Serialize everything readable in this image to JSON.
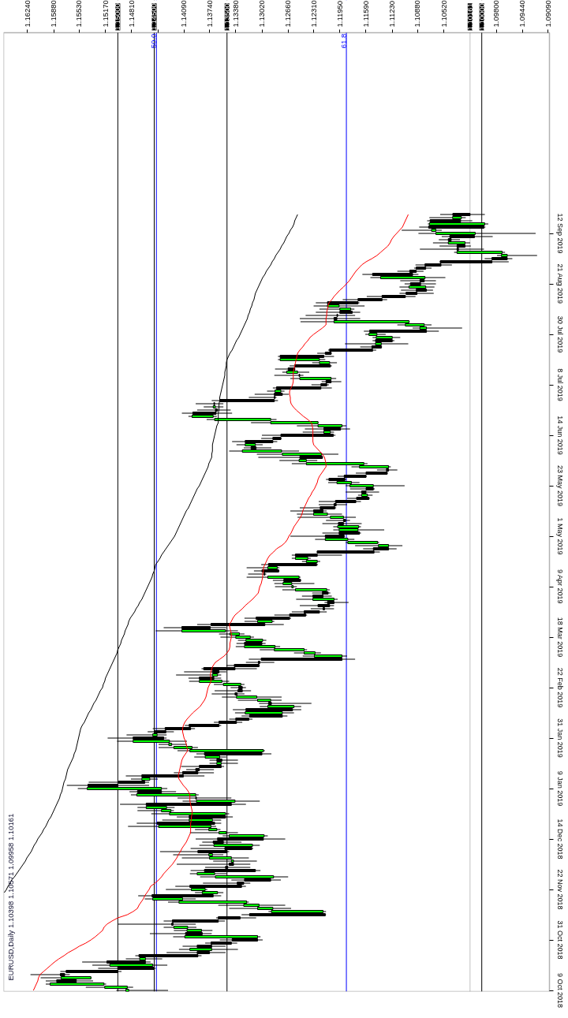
{
  "chart_data": {
    "type": "candlestick",
    "title": "EURUSD,Daily 1.10398 1.10571 1.09958 1.10161",
    "orientation": "horizontal",
    "categories": [
      null,
      null,
      null,
      null,
      null,
      null,
      "12 Sep 2019",
      null,
      null,
      null,
      null,
      null,
      null,
      null,
      null,
      null,
      null,
      null,
      null,
      null,
      null,
      null,
      "21 Aug 2019",
      null,
      null,
      null,
      null,
      null,
      null,
      null,
      null,
      null,
      null,
      null,
      null,
      null,
      null,
      null,
      "30 Jul 2019",
      null,
      null,
      null,
      null,
      null,
      null,
      null,
      null,
      null,
      null,
      null,
      null,
      null,
      null,
      null,
      "8 Jul 2019",
      null,
      null,
      null,
      null,
      null,
      null,
      null,
      null,
      null,
      null,
      null,
      null,
      null,
      null,
      null,
      "14 Jun 2019",
      null,
      null,
      null,
      null,
      null,
      null,
      null,
      null,
      null,
      null,
      null,
      null,
      null,
      null,
      null,
      "23 May 2019",
      null,
      null,
      null,
      null,
      null,
      null,
      null,
      null,
      null,
      null,
      null,
      null,
      null,
      null,
      null,
      "1 May 2019",
      null,
      null,
      null,
      null,
      null,
      null,
      null,
      null,
      null,
      null,
      null,
      null,
      null,
      null,
      null,
      "9 Apr 2019",
      null,
      null,
      null,
      null,
      null,
      null,
      null,
      null,
      null,
      null,
      null,
      null,
      null,
      null,
      null,
      "18 Mar 2019",
      null,
      null,
      null,
      null,
      null,
      null,
      null,
      null,
      null,
      null,
      null,
      null,
      null,
      null,
      null,
      "22 Feb 2019",
      null,
      null,
      null,
      null,
      null,
      null,
      null,
      null,
      null,
      null,
      null,
      null,
      null,
      null,
      null,
      "31 Jan 2019",
      null,
      null,
      null,
      null,
      null,
      null,
      null,
      null,
      null,
      null,
      null,
      null,
      null,
      null,
      null,
      "9 Jan 2019",
      null,
      null,
      null,
      null,
      null,
      null,
      null,
      null,
      null,
      null,
      null,
      null,
      null,
      null,
      null,
      "14 Dec 2018",
      null,
      null,
      null,
      null,
      null,
      null,
      null,
      null,
      null,
      null,
      null,
      null,
      null,
      null,
      null,
      "22 Nov 2018",
      null,
      null,
      null,
      null,
      null,
      null,
      null,
      null,
      null,
      null,
      null,
      null,
      null,
      null,
      null,
      "31 Oct 2018",
      null,
      null,
      null,
      null,
      null,
      null,
      null,
      null,
      null,
      null,
      null,
      null,
      null,
      null,
      null,
      "9 Oct 2018"
    ],
    "ohlc": [
      [
        1.10398,
        1.10571,
        1.09958,
        1.10161
      ],
      [
        1.1028,
        1.1072,
        1.1022,
        1.104
      ],
      [
        1.1071,
        1.1075,
        1.1013,
        1.1029
      ],
      [
        1.0996,
        1.1074,
        1.0991,
        1.1072
      ],
      [
        1.1073,
        1.1086,
        1.0995,
        1.0997
      ],
      [
        1.1063,
        1.111,
        1.1055,
        1.1069
      ],
      [
        1.1009,
        1.1087,
        1.0926,
        1.1063
      ],
      [
        1.1044,
        1.1055,
        1.0985,
        1.101
      ],
      [
        1.1046,
        1.1059,
        1.103,
        1.1042
      ],
      [
        1.1023,
        1.1067,
        1.1016,
        1.1046
      ],
      [
        1.1034,
        1.1058,
        1.1015,
        1.1023
      ],
      [
        1.1034,
        1.1085,
        1.0997,
        1.1032
      ],
      [
        1.0972,
        1.1038,
        1.0968,
        1.1034
      ],
      [
        1.0965,
        1.0979,
        1.0924,
        1.0973
      ],
      [
        1.0986,
        1.0996,
        1.0958,
        1.0965
      ],
      [
        1.1057,
        1.1058,
        1.0963,
        1.0986
      ],
      [
        1.1078,
        1.1091,
        1.1041,
        1.1056
      ],
      [
        1.109,
        1.1093,
        1.1069,
        1.1077
      ],
      [
        1.1099,
        1.1116,
        1.108,
        1.109
      ],
      [
        1.115,
        1.1164,
        1.1087,
        1.1095
      ],
      [
        1.1078,
        1.1153,
        1.105,
        1.1139
      ],
      [
        1.1085,
        1.1112,
        1.1063,
        1.1079
      ],
      [
        1.1098,
        1.1106,
        1.1063,
        1.1084
      ],
      [
        1.1077,
        1.1113,
        1.1065,
        1.11
      ],
      [
        1.109,
        1.1111,
        1.1067,
        1.1076
      ],
      [
        1.1104,
        1.1113,
        1.1066,
        1.1089
      ],
      [
        1.1137,
        1.1158,
        1.1091,
        1.1105
      ],
      [
        1.117,
        1.1191,
        1.113,
        1.1137
      ],
      [
        1.1212,
        1.1228,
        1.1168,
        1.117
      ],
      [
        1.1196,
        1.1231,
        1.1161,
        1.1212
      ],
      [
        1.118,
        1.1223,
        1.1175,
        1.1195
      ],
      [
        1.1195,
        1.1228,
        1.1167,
        1.1178
      ],
      [
        1.1199,
        1.1242,
        1.1174,
        1.1198
      ],
      [
        1.1203,
        1.125,
        1.1167,
        1.1199
      ],
      [
        1.11,
        1.1249,
        1.1099,
        1.1203
      ],
      [
        1.1079,
        1.1116,
        1.1069,
        1.1105
      ],
      [
        1.1076,
        1.1095,
        1.1027,
        1.1085
      ],
      [
        1.1154,
        1.1162,
        1.1059,
        1.1076
      ],
      [
        1.1144,
        1.116,
        1.1132,
        1.1155
      ],
      [
        1.1123,
        1.115,
        1.1112,
        1.1145
      ],
      [
        1.1146,
        1.115,
        1.112,
        1.1123
      ],
      [
        1.1138,
        1.1188,
        1.1101,
        1.1146
      ],
      [
        1.1151,
        1.1167,
        1.1137,
        1.1138
      ],
      [
        1.1209,
        1.1211,
        1.1145,
        1.115
      ],
      [
        1.1215,
        1.1226,
        1.1206,
        1.1207
      ],
      [
        1.1277,
        1.128,
        1.1203,
        1.1217
      ],
      [
        1.1223,
        1.128,
        1.1215,
        1.1277
      ],
      [
        1.1209,
        1.1233,
        1.1199,
        1.1223
      ],
      [
        1.1257,
        1.1264,
        1.1206,
        1.1208
      ],
      [
        1.1266,
        1.1284,
        1.1256,
        1.1257
      ],
      [
        1.1253,
        1.1274,
        1.1237,
        1.1268
      ],
      [
        1.1251,
        1.1285,
        1.1245,
        1.125
      ],
      [
        1.1207,
        1.1263,
        1.12,
        1.125
      ],
      [
        1.1214,
        1.122,
        1.1193,
        1.1207
      ],
      [
        1.1221,
        1.1234,
        1.121,
        1.1213
      ],
      [
        1.1282,
        1.1287,
        1.1206,
        1.1221
      ],
      [
        1.1276,
        1.1295,
        1.1271,
        1.1284
      ],
      [
        1.1285,
        1.1312,
        1.1265,
        1.1274
      ],
      [
        1.1285,
        1.132,
        1.1282,
        1.1284
      ],
      [
        1.136,
        1.1371,
        1.128,
        1.1285
      ],
      [
        1.1368,
        1.1393,
        1.1355,
        1.1367
      ],
      [
        1.1366,
        1.1382,
        1.1355,
        1.1369
      ],
      [
        1.1366,
        1.1391,
        1.1345,
        1.1363
      ],
      [
        1.1397,
        1.1412,
        1.1343,
        1.1365
      ],
      [
        1.1369,
        1.1403,
        1.1364,
        1.1398
      ],
      [
        1.129,
        1.1378,
        1.1282,
        1.1367
      ],
      [
        1.1225,
        1.1317,
        1.1224,
        1.129
      ],
      [
        1.1192,
        1.1254,
        1.1186,
        1.1225
      ],
      [
        1.1217,
        1.1243,
        1.1181,
        1.1194
      ],
      [
        1.1208,
        1.1246,
        1.1203,
        1.1217
      ],
      [
        1.1276,
        1.1302,
        1.1201,
        1.1204
      ],
      [
        1.1287,
        1.1303,
        1.1275,
        1.1276
      ],
      [
        1.1325,
        1.1343,
        1.1281,
        1.1287
      ],
      [
        1.1311,
        1.1337,
        1.1301,
        1.1325
      ],
      [
        1.1317,
        1.1327,
        1.1289,
        1.131
      ],
      [
        1.1275,
        1.1347,
        1.1251,
        1.1329
      ],
      [
        1.122,
        1.1309,
        1.1197,
        1.1274
      ],
      [
        1.125,
        1.1307,
        1.1218,
        1.1219
      ],
      [
        1.1241,
        1.1278,
        1.1226,
        1.1251
      ],
      [
        1.1162,
        1.1261,
        1.1157,
        1.1241
      ],
      [
        1.1128,
        1.1179,
        1.1125,
        1.1168
      ],
      [
        1.1131,
        1.1144,
        1.1116,
        1.1128
      ],
      [
        1.1159,
        1.1173,
        1.1129,
        1.113
      ],
      [
        1.1189,
        1.1198,
        1.1158,
        1.1159
      ],
      [
        1.121,
        1.1214,
        1.1186,
        1.1188
      ],
      [
        1.1179,
        1.1211,
        1.1168,
        1.1199
      ],
      [
        1.1149,
        1.1187,
        1.1106,
        1.1181
      ],
      [
        1.1159,
        1.1181,
        1.1147,
        1.1149
      ],
      [
        1.1165,
        1.1187,
        1.1141,
        1.1159
      ],
      [
        1.1157,
        1.117,
        1.115,
        1.1165
      ],
      [
        1.1172,
        1.1185,
        1.1154,
        1.1155
      ],
      [
        1.1201,
        1.1224,
        1.1166,
        1.1173
      ],
      [
        1.1203,
        1.1224,
        1.1185,
        1.12
      ],
      [
        1.1222,
        1.125,
        1.12,
        1.1202
      ],
      [
        1.1231,
        1.1263,
        1.1213,
        1.1218
      ],
      [
        1.1212,
        1.1254,
        1.1192,
        1.1231
      ],
      [
        1.119,
        1.1253,
        1.1173,
        1.1208
      ],
      [
        1.119,
        1.1214,
        1.1181,
        1.1187
      ],
      [
        1.1197,
        1.1219,
        1.1165,
        1.119
      ],
      [
        1.1169,
        1.1204,
        1.1166,
        1.1198
      ],
      [
        1.117,
        1.1204,
        1.1134,
        1.1196
      ],
      [
        1.1196,
        1.1219,
        1.1166,
        1.1168
      ],
      [
        1.1215,
        1.1263,
        1.1188,
        1.1189
      ],
      [
        1.1184,
        1.1229,
        1.1175,
        1.1215
      ],
      [
        1.1143,
        1.1187,
        1.1141,
        1.1184
      ],
      [
        1.1128,
        1.1174,
        1.1109,
        1.1142
      ],
      [
        1.1149,
        1.1163,
        1.1117,
        1.1128
      ],
      [
        1.1226,
        1.1227,
        1.114,
        1.1148
      ],
      [
        1.1256,
        1.1261,
        1.1192,
        1.1226
      ],
      [
        1.1239,
        1.1261,
        1.1235,
        1.1256
      ],
      [
        1.1226,
        1.1247,
        1.1222,
        1.1241
      ],
      [
        1.1293,
        1.1303,
        1.1225,
        1.1227
      ],
      [
        1.1281,
        1.1323,
        1.1278,
        1.1294
      ],
      [
        1.1302,
        1.1313,
        1.1278,
        1.1279
      ],
      [
        1.1299,
        1.1321,
        1.1296,
        1.1298
      ],
      [
        1.1251,
        1.1323,
        1.1249,
        1.1294
      ],
      [
        1.1272,
        1.1287,
        1.1248,
        1.1249
      ],
      [
        1.1261,
        1.1285,
        1.123,
        1.1273
      ],
      [
        1.1259,
        1.1284,
        1.1254,
        1.1261
      ],
      [
        1.1213,
        1.1274,
        1.1209,
        1.1256
      ],
      [
        1.1219,
        1.1233,
        1.1208,
        1.1211
      ],
      [
        1.1232,
        1.1247,
        1.1206,
        1.1218
      ],
      [
        1.1203,
        1.1255,
        1.1198,
        1.1232
      ],
      [
        1.1212,
        1.1216,
        1.1183,
        1.1203
      ],
      [
        1.1225,
        1.125,
        1.1203,
        1.1209
      ],
      [
        1.1218,
        1.1235,
        1.1203,
        1.1216
      ],
      [
        1.1244,
        1.1261,
        1.1213,
        1.1223
      ],
      [
        1.1264,
        1.1285,
        1.124,
        1.1242
      ],
      [
        1.131,
        1.1326,
        1.1262,
        1.1264
      ],
      [
        1.1288,
        1.1326,
        1.1285,
        1.1308
      ],
      [
        1.1372,
        1.1391,
        1.1272,
        1.1298
      ],
      [
        1.1412,
        1.1437,
        1.1351,
        1.1373
      ],
      [
        1.1352,
        1.1448,
        1.1335,
        1.1412
      ],
      [
        1.1333,
        1.1361,
        1.1326,
        1.1346
      ],
      [
        1.1318,
        1.1359,
        1.1313,
        1.1338
      ],
      [
        1.1301,
        1.1335,
        1.1296,
        1.1324
      ],
      [
        1.1326,
        1.1337,
        1.1297,
        1.1302
      ],
      [
        1.1284,
        1.1338,
        1.1277,
        1.1326
      ],
      [
        1.1244,
        1.1305,
        1.124,
        1.1285
      ],
      [
        1.1229,
        1.1258,
        1.1221,
        1.1244
      ],
      [
        1.1192,
        1.1246,
        1.1185,
        1.123
      ],
      [
        1.1303,
        1.132,
        1.1174,
        1.1192
      ],
      [
        1.1307,
        1.1324,
        1.1285,
        1.1305
      ],
      [
        1.134,
        1.1351,
        1.1305,
        1.1306
      ],
      [
        1.1382,
        1.1385,
        1.1309,
        1.1339
      ],
      [
        1.137,
        1.1409,
        1.1351,
        1.1361
      ],
      [
        1.1363,
        1.142,
        1.1358,
        1.137
      ],
      [
        1.1388,
        1.1403,
        1.1358,
        1.1368
      ],
      [
        1.1357,
        1.1402,
        1.1347,
        1.1388
      ],
      [
        1.1331,
        1.1368,
        1.1326,
        1.1355
      ],
      [
        1.1334,
        1.1345,
        1.1324,
        1.1329
      ],
      [
        1.1335,
        1.1367,
        1.1317,
        1.1329
      ],
      [
        1.1339,
        1.1371,
        1.1326,
        1.1336
      ],
      [
        1.1309,
        1.1357,
        1.1275,
        1.1337
      ],
      [
        1.129,
        1.1335,
        1.1275,
        1.1308
      ],
      [
        1.1293,
        1.1306,
        1.1234,
        1.1289
      ],
      [
        1.1258,
        1.1305,
        1.1248,
        1.1294
      ],
      [
        1.1324,
        1.1342,
        1.1248,
        1.126
      ],
      [
        1.1274,
        1.1339,
        1.1258,
        1.1325
      ],
      [
        1.1319,
        1.133,
        1.1267,
        1.1274
      ],
      [
        1.1338,
        1.1347,
        1.1315,
        1.132
      ],
      [
        1.1361,
        1.1368,
        1.1329,
        1.1337
      ],
      [
        1.1402,
        1.1408,
        1.1358,
        1.1361
      ],
      [
        1.1435,
        1.1452,
        1.1394,
        1.14
      ],
      [
        1.1449,
        1.1459,
        1.1423,
        1.1434
      ],
      [
        1.1446,
        1.1488,
        1.1433,
        1.1452
      ],
      [
        1.1479,
        1.1514,
        1.1433,
        1.1437
      ],
      [
        1.1429,
        1.1501,
        1.1405,
        1.1479
      ],
      [
        1.1426,
        1.1444,
        1.1405,
        1.143
      ],
      [
        1.1398,
        1.1444,
        1.139,
        1.1423
      ],
      [
        1.13,
        1.1418,
        1.1298,
        1.1401
      ],
      [
        1.1381,
        1.1392,
        1.1289,
        1.1302
      ],
      [
        1.136,
        1.1395,
        1.1351,
        1.138
      ],
      [
        1.1364,
        1.1374,
        1.1335,
        1.1357
      ],
      [
        1.1358,
        1.1374,
        1.1335,
        1.1364
      ],
      [
        1.1388,
        1.1413,
        1.1354,
        1.1358
      ],
      [
        1.1393,
        1.1406,
        1.1368,
        1.1388
      ],
      [
        1.1411,
        1.1423,
        1.1368,
        1.139
      ],
      [
        1.1467,
        1.1489,
        1.1381,
        1.141
      ],
      [
        1.1456,
        1.1482,
        1.1445,
        1.1467
      ],
      [
        1.1499,
        1.154,
        1.1457,
        1.1463
      ],
      [
        1.1541,
        1.157,
        1.1457,
        1.15
      ],
      [
        1.144,
        1.1555,
        1.1432,
        1.1542
      ],
      [
        1.1473,
        1.1484,
        1.142,
        1.144
      ],
      [
        1.1393,
        1.1482,
        1.1389,
        1.1474
      ],
      [
        1.1393,
        1.1418,
        1.1344,
        1.1392
      ],
      [
        1.1339,
        1.1411,
        1.1305,
        1.1392
      ],
      [
        1.1461,
        1.1497,
        1.1324,
        1.1344
      ],
      [
        1.1433,
        1.1473,
        1.1422,
        1.1461
      ],
      [
        1.1427,
        1.1473,
        1.1423,
        1.144
      ],
      [
        1.1352,
        1.1454,
        1.1347,
        1.1429
      ],
      [
        1.1402,
        1.1419,
        1.1342,
        1.1352
      ],
      [
        1.137,
        1.1439,
        1.1358,
        1.1402
      ],
      [
        1.1446,
        1.1474,
        1.1358,
        1.1367
      ],
      [
        1.1372,
        1.1486,
        1.1365,
        1.1444
      ],
      [
        1.1364,
        1.1394,
        1.1359,
        1.1375
      ],
      [
        1.1351,
        1.1401,
        1.1335,
        1.1361
      ],
      [
        1.1299,
        1.1356,
        1.1294,
        1.1347
      ],
      [
        1.1363,
        1.1393,
        1.127,
        1.13
      ],
      [
        1.1369,
        1.1384,
        1.133,
        1.1355
      ],
      [
        1.1315,
        1.1388,
        1.1305,
        1.1368
      ],
      [
        1.1353,
        1.14,
        1.1314,
        1.1316
      ],
      [
        1.139,
        1.1442,
        1.1347,
        1.135
      ],
      [
        1.137,
        1.1424,
        1.1355,
        1.1375
      ],
      [
        1.1344,
        1.1412,
        1.132,
        1.1374
      ],
      [
        1.1341,
        1.1369,
        1.1309,
        1.1344
      ],
      [
        1.1347,
        1.1419,
        1.1318,
        1.1341
      ],
      [
        1.1352,
        1.138,
        1.1318,
        1.1349
      ],
      [
        1.1381,
        1.14,
        1.1304,
        1.1311
      ],
      [
        1.1367,
        1.1401,
        1.135,
        1.1391
      ],
      [
        1.1286,
        1.1387,
        1.1266,
        1.1366
      ],
      [
        1.1326,
        1.1344,
        1.1276,
        1.129
      ],
      [
        1.1336,
        1.1383,
        1.1318,
        1.1327
      ],
      [
        1.1401,
        1.1421,
        1.1324,
        1.133
      ],
      [
        1.138,
        1.1434,
        1.1377,
        1.1399
      ],
      [
        1.1363,
        1.1394,
        1.1355,
        1.1384
      ],
      [
        1.1453,
        1.1472,
        1.1358,
        1.1369
      ],
      [
        1.1411,
        1.1463,
        1.1393,
        1.1452
      ],
      [
        1.1323,
        1.1431,
        1.132,
        1.1416
      ],
      [
        1.1306,
        1.1362,
        1.127,
        1.1327
      ],
      [
        1.1287,
        1.1347,
        1.1262,
        1.1308
      ],
      [
        1.1218,
        1.1293,
        1.1214,
        1.1289
      ],
      [
        1.1319,
        1.133,
        1.1214,
        1.1215
      ],
      [
        1.1362,
        1.1365,
        1.131,
        1.1332
      ],
      [
        1.1425,
        1.1437,
        1.1353,
        1.1362
      ],
      [
        1.1426,
        1.15,
        1.1393,
        1.1424
      ],
      [
        1.1404,
        1.1437,
        1.1392,
        1.1423
      ],
      [
        1.1385,
        1.1423,
        1.137,
        1.1405
      ],
      [
        1.1407,
        1.1456,
        1.1371,
        1.1384
      ],
      [
        1.1308,
        1.1424,
        1.1304,
        1.1408
      ],
      [
        1.1343,
        1.136,
        1.1301,
        1.1308
      ],
      [
        1.1372,
        1.138,
        1.1336,
        1.1344
      ],
      [
        1.1391,
        1.1411,
        1.1352,
        1.1371
      ],
      [
        1.1371,
        1.1416,
        1.1335,
        1.1401
      ],
      [
        1.1391,
        1.1433,
        1.1352,
        1.1374
      ],
      [
        1.1471,
        1.1476,
        1.1385,
        1.139
      ],
      [
        1.1462,
        1.1489,
        1.1439,
        1.147
      ],
      [
        1.1515,
        1.1549,
        1.1455,
        1.1462
      ],
      [
        1.1452,
        1.1535,
        1.1432,
        1.1511
      ],
      [
        1.15,
        1.1527,
        1.1448,
        1.145
      ],
      [
        1.1571,
        1.1579,
        1.1495,
        1.15
      ],
      [
        1.1579,
        1.162,
        1.1566,
        1.1573
      ],
      [
        1.1537,
        1.1606,
        1.1536,
        1.1578
      ],
      [
        1.1584,
        1.1599,
        1.1534,
        1.1557
      ],
      [
        1.1519,
        1.1599,
        1.1516,
        1.1593
      ],
      [
        1.1487,
        1.1544,
        1.1479,
        1.1518
      ],
      [
        1.1485,
        1.1502,
        1.1431,
        1.1489
      ]
    ],
    "colors": [
      "#000000",
      "#00ff00",
      "#000000",
      "#00ff00",
      "#000000",
      "#00ff00",
      "#00ff00",
      "#000000",
      "#000000",
      "#00ff00",
      "#000000",
      "#000000",
      "#00ff00",
      "#00ff00",
      "#000000",
      "#000000",
      "#000000",
      "#000000",
      "#000000",
      "#000000",
      "#00ff00",
      "#000000",
      "#000000",
      "#00ff00",
      "#000000",
      "#000000",
      "#000000",
      "#000000",
      "#000000",
      "#00ff00",
      "#00ff00",
      "#000000",
      "#000000",
      "#000000",
      "#00ff00",
      "#00ff00",
      "#00ff00",
      "#000000",
      "#00ff00",
      "#00ff00",
      "#000000",
      "#00ff00",
      "#000000",
      "#000000",
      "#000000",
      "#000000",
      "#00ff00",
      "#00ff00",
      "#000000",
      "#000000",
      "#00ff00",
      "#000000",
      "#00ff00",
      "#000000",
      "#000000",
      "#000000",
      "#00ff00",
      "#000000",
      "#000000",
      "#000000",
      "#000000",
      "#00ff00",
      "#000000",
      "#000000",
      "#00ff00",
      "#00ff00",
      "#00ff00",
      "#00ff00",
      "#000000",
      "#00ff00",
      "#000000",
      "#000000",
      "#000000",
      "#00ff00",
      "#000000",
      "#00ff00",
      "#00ff00",
      "#000000",
      "#00ff00",
      "#00ff00",
      "#00ff00",
      "#000000",
      "#000000",
      "#000000",
      "#000000",
      "#00ff00",
      "#00ff00",
      "#000000",
      "#000000",
      "#00ff00",
      "#000000",
      "#000000",
      "#000000",
      "#000000",
      "#000000",
      "#00ff00",
      "#00ff00",
      "#000000",
      "#000000",
      "#00ff00",
      "#00ff00",
      "#000000",
      "#000000",
      "#00ff00",
      "#00ff00",
      "#00ff00",
      "#000000",
      "#000000",
      "#000000",
      "#00ff00",
      "#00ff00",
      "#000000",
      "#00ff00",
      "#000000",
      "#000000",
      "#00ff00",
      "#000000",
      "#00ff00",
      "#00ff00",
      "#00ff00",
      "#000000",
      "#000000",
      "#00ff00",
      "#000000",
      "#000000",
      "#000000",
      "#000000",
      "#000000",
      "#000000",
      "#00ff00",
      "#000000",
      "#000000",
      "#00ff00",
      "#00ff00",
      "#00ff00",
      "#00ff00",
      "#000000",
      "#00ff00",
      "#00ff00",
      "#00ff00",
      "#00ff00",
      "#000000",
      "#000000",
      "#000000",
      "#000000",
      "#000000",
      "#00ff00",
      "#000000",
      "#00ff00",
      "#00ff00",
      "#000000",
      "#000000",
      "#000000",
      "#00ff00",
      "#00ff00",
      "#000000",
      "#00ff00",
      "#000000",
      "#00ff00",
      "#000000",
      "#000000",
      "#000000",
      "#000000",
      "#000000",
      "#000000",
      "#00ff00",
      "#000000",
      "#00ff00",
      "#00ff00",
      "#00ff00",
      "#00ff00",
      "#000000",
      "#00ff00",
      "#000000",
      "#00ff00",
      "#000000",
      "#000000",
      "#000000",
      "#000000",
      "#00ff00",
      "#000000",
      "#000000",
      "#00ff00",
      "#000000",
      "#00ff00",
      "#000000",
      "#00ff00",
      "#000000",
      "#00ff00",
      "#00ff00",
      "#00ff00",
      "#000000",
      "#00ff00",
      "#000000",
      "#00ff00",
      "#00ff00",
      "#00ff00",
      "#00ff00",
      "#000000",
      "#000000",
      "#00ff00",
      "#000000",
      "#000000",
      "#00ff00",
      "#00ff00",
      "#00ff00",
      "#000000",
      "#000000",
      "#000000",
      "#00ff00",
      "#00ff00",
      "#000000",
      "#000000",
      "#000000",
      "#00ff00",
      "#00ff00",
      "#000000",
      "#00ff00",
      "#00ff00",
      "#00ff00",
      "#00ff00",
      "#00ff00",
      "#000000",
      "#000000",
      "#000000",
      "#000000",
      "#00ff00",
      "#00ff00",
      "#000000",
      "#00ff00",
      "#000000",
      "#000000",
      "#000000",
      "#00ff00",
      "#000000",
      "#000000",
      "#00ff00",
      "#000000",
      "#00ff00",
      "#000000",
      "#000000",
      "#000000",
      "#00ff00",
      "#000000",
      "#00ff00",
      "#00ff00",
      "#00ff00"
    ],
    "series": [
      {
        "type": "line",
        "color": "#ff0000",
        "values": [
          1.1101,
          1.1103,
          1.1105,
          1.1107,
          1.1109,
          1.1113,
          1.1117,
          1.1121,
          1.1124,
          1.1126,
          1.1129,
          1.1134,
          1.1139,
          1.1144,
          1.1151,
          1.1159,
          1.1165,
          1.1169,
          1.1173,
          1.1176,
          1.1179,
          1.1182,
          1.1186,
          1.119,
          1.1195,
          1.1199,
          1.1203,
          1.1206,
          1.121,
          1.1211,
          1.1212,
          1.1213,
          1.1213,
          1.1214,
          1.1214,
          1.1214,
          1.1219,
          1.1225,
          1.1231,
          1.1236,
          1.1239,
          1.1243,
          1.1246,
          1.125,
          1.1253,
          1.1254,
          1.1255,
          1.1256,
          1.1257,
          1.1258,
          1.1259,
          1.1259,
          1.1259,
          1.1259,
          1.126,
          1.1262,
          1.1264,
          1.1264,
          1.1263,
          1.1263,
          1.1262,
          1.1259,
          1.1255,
          1.125,
          1.1245,
          1.1239,
          1.1234,
          1.1233,
          1.1232,
          1.1232,
          1.1232,
          1.1232,
          1.1232,
          1.1231,
          1.1227,
          1.1223,
          1.1219,
          1.1216,
          1.1215,
          1.1214,
          1.1214,
          1.1217,
          1.122,
          1.1223,
          1.1225,
          1.1226,
          1.1228,
          1.123,
          1.1233,
          1.1235,
          1.1238,
          1.124,
          1.1242,
          1.1244,
          1.1246,
          1.1247,
          1.1249,
          1.1252,
          1.1255,
          1.1258,
          1.126,
          1.1262,
          1.1265,
          1.1267,
          1.127,
          1.1275,
          1.1282,
          1.1286,
          1.1291,
          1.1294,
          1.1296,
          1.1298,
          1.13,
          1.13,
          1.1301,
          1.1301,
          1.1302,
          1.1303,
          1.1305,
          1.1306,
          1.1307,
          1.1311,
          1.1315,
          1.132,
          1.1325,
          1.1329,
          1.1334,
          1.1339,
          1.1342,
          1.1344,
          1.1347,
          1.1346,
          1.1345,
          1.1344,
          1.1344,
          1.1345,
          1.1346,
          1.1346,
          1.1347,
          1.135,
          1.1354,
          1.136,
          1.1366,
          1.1369,
          1.1371,
          1.1372,
          1.1373,
          1.1372,
          1.1372,
          1.1374,
          1.1376,
          1.1377,
          1.1378,
          1.1379,
          1.1381,
          1.1384,
          1.1387,
          1.1392,
          1.1397,
          1.1401,
          1.1405,
          1.1408,
          1.141,
          1.1411,
          1.1411,
          1.141,
          1.1409,
          1.1407,
          1.1406,
          1.1405,
          1.1404,
          1.1407,
          1.141,
          1.1412,
          1.1413,
          1.1414,
          1.1415,
          1.1416,
          1.1417,
          1.1416,
          1.1413,
          1.141,
          1.1406,
          1.1403,
          1.1401,
          1.1401,
          1.1401,
          1.14,
          1.1399,
          1.1398,
          1.1398,
          1.1399,
          1.1399,
          1.14,
          1.14,
          1.14,
          1.14,
          1.1402,
          1.1404,
          1.1406,
          1.1409,
          1.1412,
          1.1414,
          1.1417,
          1.1419,
          1.1422,
          1.1425,
          1.1429,
          1.1433,
          1.1437,
          1.144,
          1.1444,
          1.1449,
          1.1455,
          1.1457,
          1.146,
          1.1463,
          1.1465,
          1.1468,
          1.1471,
          1.1473,
          1.1479,
          1.1487,
          1.15,
          1.1508,
          1.1515,
          1.1519,
          1.1521,
          1.1526,
          1.1531,
          1.1537,
          1.1544,
          1.1553,
          1.156,
          1.1568,
          1.1574,
          1.1581,
          1.1587,
          1.1592,
          1.1597,
          1.1602,
          1.1607,
          1.1609,
          1.161,
          1.1612,
          1.1614,
          1.1616
        ]
      },
      {
        "type": "line",
        "color": "#000000",
        "values": [
          1.1253,
          1.1255,
          1.1257,
          1.1258,
          1.126,
          1.1263,
          1.1265,
          1.1268,
          1.127,
          1.1272,
          1.1275,
          1.1277,
          1.128,
          1.1283,
          1.1285,
          1.1288,
          1.129,
          1.1293,
          1.1296,
          1.1298,
          1.1301,
          1.1303,
          1.1305,
          1.1307,
          1.1309,
          1.1311,
          1.1312,
          1.1313,
          1.1315,
          1.1316,
          1.1318,
          1.1319,
          1.1321,
          1.1322,
          1.1324,
          1.1326,
          1.1328,
          1.133,
          1.1332,
          1.1334,
          1.1337,
          1.1339,
          1.1341,
          1.1343,
          1.1346,
          1.1348,
          1.135,
          1.1351,
          1.1351,
          1.1352,
          1.1353,
          1.1353,
          1.1354,
          1.1355,
          1.1356,
          1.1357,
          1.1358,
          1.1359,
          1.136,
          1.136,
          1.1361,
          1.1361,
          1.1361,
          1.1362,
          1.1362,
          1.1362,
          1.1362,
          1.1364,
          1.1365,
          1.1366,
          1.1367,
          1.1368,
          1.1369,
          1.137,
          1.137,
          1.137,
          1.1371,
          1.1371,
          1.1373,
          1.1375,
          1.1376,
          1.1378,
          1.138,
          1.1382,
          1.1384,
          1.1386,
          1.1388,
          1.1391,
          1.1393,
          1.1395,
          1.1397,
          1.1399,
          1.1401,
          1.1403,
          1.1406,
          1.1408,
          1.141,
          1.1412,
          1.1414,
          1.1416,
          1.1418,
          1.142,
          1.1422,
          1.1425,
          1.1428,
          1.1431,
          1.1434,
          1.1437,
          1.144,
          1.1442,
          1.1445,
          1.1448,
          1.1449,
          1.145,
          1.1452,
          1.1453,
          1.1455,
          1.1457,
          1.1459,
          1.1461,
          1.1463,
          1.1465,
          1.1467,
          1.147,
          1.1472,
          1.1475,
          1.1477,
          1.148,
          1.1483,
          1.1485,
          1.1486,
          1.1488,
          1.149,
          1.1491,
          1.1493,
          1.1495,
          1.1496,
          1.1498,
          1.15,
          1.1501,
          1.1503,
          1.1505,
          1.1507,
          1.1509,
          1.1511,
          1.1513,
          1.1515,
          1.1517,
          1.1518,
          1.152,
          1.1521,
          1.1524,
          1.1526,
          1.1528,
          1.153,
          1.1533,
          1.1535,
          1.1537,
          1.154,
          1.1542,
          1.1544,
          1.1546,
          1.1549,
          1.1551,
          1.1552,
          1.1553,
          1.1554,
          1.1555,
          1.1556,
          1.1557,
          1.1558,
          1.156,
          1.1561,
          1.1563,
          1.1565,
          1.1567,
          1.1569,
          1.157,
          1.1571,
          1.1572,
          1.1574,
          1.1575,
          1.1576,
          1.1577,
          1.1579,
          1.158,
          1.1582,
          1.1584,
          1.1586,
          1.1588,
          1.159,
          1.1592,
          1.1595,
          1.1597,
          1.1599,
          1.1602,
          1.1604,
          1.1607,
          1.161,
          1.1612,
          1.1615,
          1.1617,
          1.1619,
          1.1622,
          1.1625,
          1.1627,
          1.163,
          1.1633,
          1.1636,
          1.1639,
          1.1642,
          1.1646,
          1.1648,
          1.1651,
          1.1653,
          1.1656,
          null,
          null,
          null,
          null,
          null,
          null,
          null,
          null,
          null,
          null,
          null,
          null,
          null,
          null,
          null,
          null,
          null,
          null,
          null,
          null,
          null,
          null,
          null,
          null,
          null,
          null,
          null,
          null,
          null,
          null,
          null
        ]
      }
    ],
    "xlim": [
      1.1657,
      1.0907
    ],
    "xticks": [
      {
        "value": 1.1624,
        "label": "1.16240"
      },
      {
        "value": 1.1588,
        "label": "1.15880"
      },
      {
        "value": 1.1553,
        "label": "1.15530"
      },
      {
        "value": 1.1517,
        "label": "1.15170"
      },
      {
        "value": 1.1481,
        "label": "1.14810"
      },
      {
        "value": 1.1445,
        "label": null
      },
      {
        "value": 1.1409,
        "label": "1.14090"
      },
      {
        "value": 1.1374,
        "label": "1.13740"
      },
      {
        "value": 1.1338,
        "label": "1.13380"
      },
      {
        "value": 1.1302,
        "label": "1.13020"
      },
      {
        "value": 1.1266,
        "label": "1.12660"
      },
      {
        "value": 1.1231,
        "label": "1.12310"
      },
      {
        "value": 1.1195,
        "label": "1.11950"
      },
      {
        "value": 1.1159,
        "label": "1.11590"
      },
      {
        "value": 1.1123,
        "label": "1.11230"
      },
      {
        "value": 1.1088,
        "label": "1.10880"
      },
      {
        "value": 1.1052,
        "label": "1.10520"
      },
      {
        "value": 1.098,
        "label": "1.09800"
      },
      {
        "value": 1.0944,
        "label": "1.09440"
      },
      {
        "value": 1.0909,
        "label": "1.09090"
      }
    ],
    "ref_lines": [
      {
        "axis": "x",
        "value": 1.15,
        "label": "1.15000",
        "color": "#000000"
      },
      {
        "axis": "x",
        "value": 1.145,
        "label": "1.14500",
        "color": "#000000"
      },
      {
        "axis": "x",
        "value": 1.1447,
        "color": "#0000ff"
      },
      {
        "axis": "x",
        "value": 1.135,
        "label": "1.13500",
        "color": "#000000"
      },
      {
        "axis": "x",
        "value": 1.1186,
        "color": "#0000ff"
      },
      {
        "axis": "x",
        "value": 1.10161,
        "label": "1.10161",
        "color": "#c0c0c0"
      },
      {
        "axis": "x",
        "value": 1.1,
        "label": "1.10000",
        "color": "#000000"
      }
    ],
    "annotations": [
      {
        "text": "50.0",
        "x": 1.1447
      },
      {
        "text": "61.8",
        "x": 1.1186
      }
    ]
  }
}
